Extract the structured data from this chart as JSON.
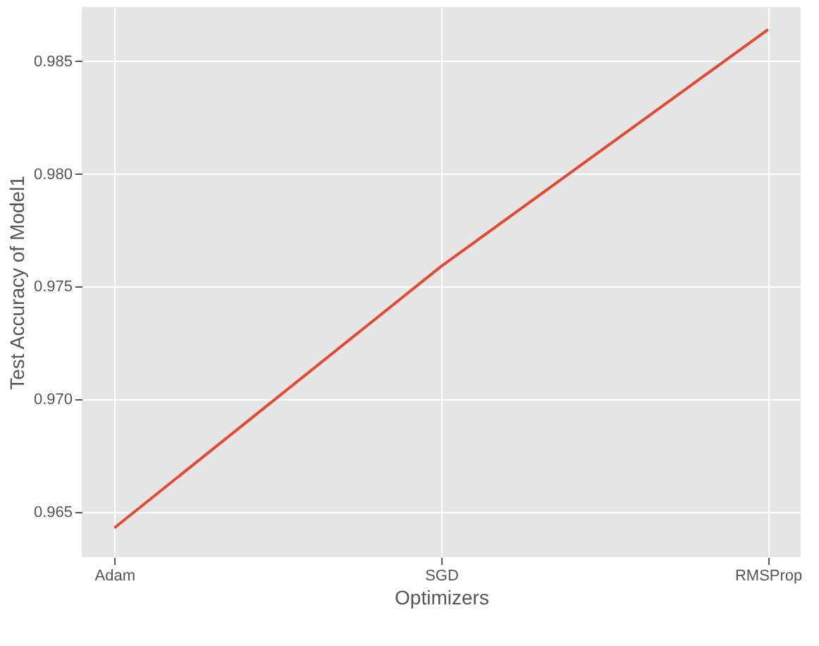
{
  "chart_data": {
    "type": "line",
    "xlabel": "Optimizers",
    "ylabel": "Test Accuracy of Model1",
    "categories": [
      "Adam",
      "SGD",
      "RMSProp"
    ],
    "series": [
      {
        "color": "#e24a33",
        "values": [
          0.9643,
          0.9759,
          0.9864
        ]
      }
    ],
    "ylim": [
      0.963,
      0.9874
    ],
    "yticks": [
      0.965,
      {
        "value": 0.97,
        "label": "0.970"
      },
      0.975,
      {
        "value": 0.98,
        "label": "0.980"
      },
      0.985
    ],
    "grid": true,
    "legend": false
  }
}
